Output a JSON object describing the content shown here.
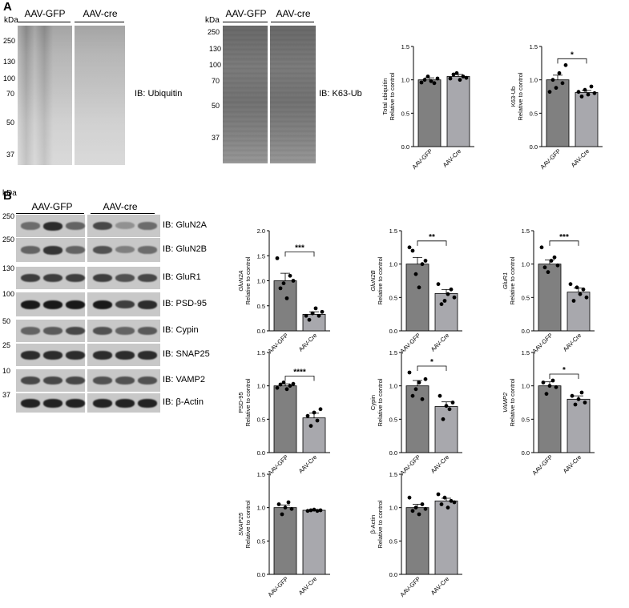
{
  "panels": {
    "a": "A",
    "b": "B"
  },
  "colors": {
    "gfp_bar": "#808080",
    "cre_bar": "#a8a8ad",
    "point": "#000000",
    "band": "#2a2a2a"
  },
  "conditions": {
    "gfp": "AAV-GFP",
    "cre": "AAV-cre"
  },
  "kda_label": "kDa",
  "blot_ubiquitin": {
    "ib": "IB: Ubiquitin",
    "markers": [
      "250",
      "130",
      "100",
      "70",
      "50",
      "37"
    ]
  },
  "blot_k63": {
    "ib": "IB: K63-Ub",
    "markers": [
      "250",
      "130",
      "100",
      "70",
      "50",
      "37"
    ]
  },
  "panel_b_blots": [
    {
      "marker": "250",
      "ib": "IB: GluN2A"
    },
    {
      "marker": "250",
      "ib": "IB: GluN2B"
    },
    {
      "marker": "130",
      "ib": "IB: GluR1"
    },
    {
      "marker": "100",
      "ib": "IB: PSD-95"
    },
    {
      "marker": "50",
      "ib": "IB: Cypin"
    },
    {
      "marker": "25",
      "ib": "IB: SNAP25"
    },
    {
      "marker": "10",
      "ib": "IB: VAMP2"
    },
    {
      "marker": "37",
      "ib": "IB: β-Actin"
    }
  ],
  "chart_data": [
    {
      "type": "bar",
      "ylabel": [
        "Total ubiquitin",
        "Relative to control"
      ],
      "ylabel_italic": false,
      "categories": [
        "AAV-GFP",
        "AAV-Cre"
      ],
      "values": [
        1.0,
        1.05
      ],
      "errors": [
        0.03,
        0.03
      ],
      "points": [
        [
          0.96,
          1.0,
          1.05,
          0.98,
          0.95,
          1.02
        ],
        [
          1.02,
          1.08,
          1.1,
          1.0,
          1.05,
          1.03
        ]
      ],
      "ylim": [
        0,
        1.5
      ],
      "yticks": [
        "0.0",
        "0.5",
        "1.0",
        "1.5"
      ],
      "significance": ""
    },
    {
      "type": "bar",
      "ylabel": [
        "K63-Ub",
        "Relative to control"
      ],
      "ylabel_italic": false,
      "categories": [
        "AAV-GFP",
        "AAV-Cre"
      ],
      "values": [
        1.0,
        0.81
      ],
      "errors": [
        0.07,
        0.03
      ],
      "points": [
        [
          0.82,
          1.0,
          0.88,
          1.1,
          0.95,
          1.22
        ],
        [
          0.82,
          0.75,
          0.85,
          0.78,
          0.9,
          0.8
        ]
      ],
      "ylim": [
        0,
        1.5
      ],
      "yticks": [
        "0.0",
        "0.5",
        "1.0",
        "1.5"
      ],
      "significance": "*"
    },
    {
      "type": "bar",
      "ylabel": [
        "GluN2A",
        "Relative to control"
      ],
      "ylabel_italic": true,
      "categories": [
        "AAV-GFP",
        "AAV-Cre"
      ],
      "values": [
        1.0,
        0.33
      ],
      "errors": [
        0.15,
        0.05
      ],
      "points": [
        [
          1.45,
          0.85,
          0.95,
          0.65,
          1.1,
          1.0
        ],
        [
          0.3,
          0.22,
          0.35,
          0.45,
          0.3,
          0.38
        ]
      ],
      "ylim": [
        0,
        2.0
      ],
      "yticks": [
        "0.0",
        "0.5",
        "1.0",
        "1.5",
        "2.0"
      ],
      "significance": "***"
    },
    {
      "type": "bar",
      "ylabel": [
        "GluN2B",
        "Relative to control"
      ],
      "ylabel_italic": true,
      "categories": [
        "AAV-GFP",
        "AAV-Cre"
      ],
      "values": [
        1.0,
        0.56
      ],
      "errors": [
        0.1,
        0.06
      ],
      "points": [
        [
          1.25,
          1.2,
          0.85,
          0.65,
          1.0,
          1.05
        ],
        [
          0.7,
          0.4,
          0.45,
          0.55,
          0.62,
          0.5
        ]
      ],
      "ylim": [
        0,
        1.5
      ],
      "yticks": [
        "0.0",
        "0.5",
        "1.0",
        "1.5"
      ],
      "significance": "**"
    },
    {
      "type": "bar",
      "ylabel": [
        "GluR1",
        "Relative to control"
      ],
      "ylabel_italic": true,
      "categories": [
        "AAV-GFP",
        "AAV-Cre"
      ],
      "values": [
        1.0,
        0.58
      ],
      "errors": [
        0.06,
        0.06
      ],
      "points": [
        [
          1.25,
          0.95,
          0.88,
          1.05,
          1.1,
          0.98
        ],
        [
          0.7,
          0.45,
          0.65,
          0.55,
          0.62,
          0.5
        ]
      ],
      "ylim": [
        0,
        1.5
      ],
      "yticks": [
        "0.0",
        "0.5",
        "1.0",
        "1.5"
      ],
      "significance": "***"
    },
    {
      "type": "bar",
      "ylabel": [
        "PSD-95",
        "Relative to control"
      ],
      "ylabel_italic": false,
      "categories": [
        "AAV-GFP",
        "AAV-Cre"
      ],
      "values": [
        1.0,
        0.52
      ],
      "errors": [
        0.03,
        0.07
      ],
      "points": [
        [
          0.97,
          1.02,
          1.05,
          0.95,
          1.0,
          1.03
        ],
        [
          0.55,
          0.4,
          0.6,
          0.48,
          0.65
        ]
      ],
      "ylim": [
        0,
        1.5
      ],
      "yticks": [
        "0.0",
        "0.5",
        "1.0",
        "1.5"
      ],
      "significance": "****"
    },
    {
      "type": "bar",
      "ylabel": [
        "Cypin",
        "Relative to control"
      ],
      "ylabel_italic": false,
      "categories": [
        "AAV-GFP",
        "AAV-Cre"
      ],
      "values": [
        1.0,
        0.69
      ],
      "errors": [
        0.08,
        0.07
      ],
      "points": [
        [
          1.2,
          0.85,
          0.95,
          1.05,
          0.8,
          1.1
        ],
        [
          0.85,
          0.5,
          0.7,
          0.65,
          0.75
        ]
      ],
      "ylim": [
        0,
        1.5
      ],
      "yticks": [
        "0.0",
        "0.5",
        "1.0",
        "1.5"
      ],
      "significance": "*"
    },
    {
      "type": "bar",
      "ylabel": [
        "VAMP2",
        "Relative to control"
      ],
      "ylabel_italic": true,
      "categories": [
        "AAV-GFP",
        "AAV-Cre"
      ],
      "values": [
        1.0,
        0.8
      ],
      "errors": [
        0.06,
        0.05
      ],
      "points": [
        [
          1.05,
          0.88,
          1.0,
          1.08,
          0.98
        ],
        [
          0.85,
          0.72,
          0.8,
          0.9,
          0.75
        ]
      ],
      "ylim": [
        0,
        1.5
      ],
      "yticks": [
        "0.0",
        "0.5",
        "1.0",
        "1.5"
      ],
      "significance": "*"
    },
    {
      "type": "bar",
      "ylabel": [
        "SNAP25",
        "Relative to control"
      ],
      "ylabel_italic": true,
      "categories": [
        "AAV-GFP",
        "AAV-Cre"
      ],
      "values": [
        1.0,
        0.96
      ],
      "errors": [
        0.04,
        0.01
      ],
      "points": [
        [
          1.05,
          0.9,
          1.0,
          1.08,
          0.98
        ],
        [
          0.95,
          0.96,
          0.97,
          0.95,
          0.96
        ]
      ],
      "ylim": [
        0,
        1.5
      ],
      "yticks": [
        "0.0",
        "0.5",
        "1.0",
        "1.5"
      ],
      "significance": ""
    },
    {
      "type": "bar",
      "ylabel": [
        "β-Actin",
        "Relative to control"
      ],
      "ylabel_italic": false,
      "categories": [
        "AAV-GFP",
        "AAV-Cre"
      ],
      "values": [
        1.0,
        1.1
      ],
      "errors": [
        0.05,
        0.04
      ],
      "points": [
        [
          1.15,
          0.95,
          1.0,
          0.9,
          1.05,
          0.98
        ],
        [
          1.2,
          1.05,
          1.15,
          1.0,
          1.1,
          1.08
        ]
      ],
      "ylim": [
        0,
        1.5
      ],
      "yticks": [
        "0.0",
        "0.5",
        "1.0",
        "1.5"
      ],
      "significance": ""
    }
  ]
}
